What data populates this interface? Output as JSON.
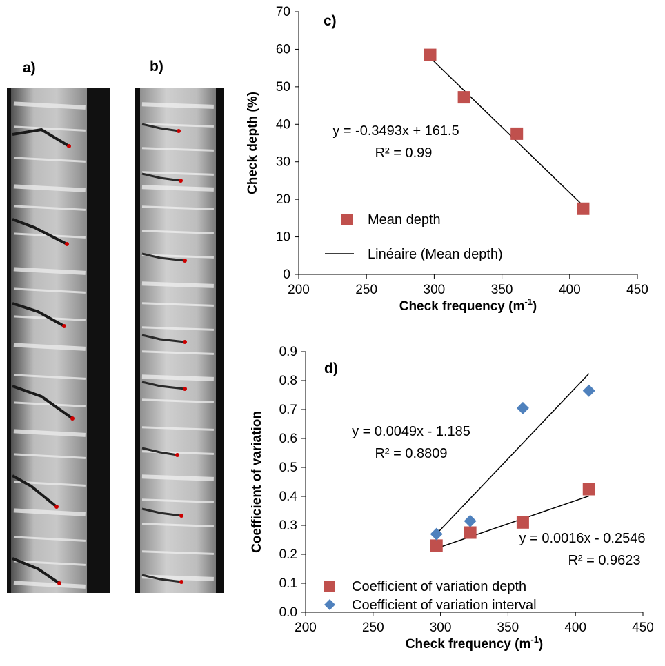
{
  "panels": {
    "a_label": "a)",
    "b_label": "b)"
  },
  "chart_data": [
    {
      "panel": "c)",
      "type": "scatter",
      "xlabel": "Check frequency (m",
      "xlabel_sup": "-1",
      "xlabel_end": ")",
      "ylabel": "Check depth (%)",
      "xlim": [
        200,
        450
      ],
      "ylim": [
        0,
        70
      ],
      "xticks": [
        200,
        250,
        300,
        350,
        400,
        450
      ],
      "yticks": [
        0,
        10,
        20,
        30,
        40,
        50,
        60,
        70
      ],
      "series": [
        {
          "name": "Mean depth",
          "marker": "square",
          "color": "#c0504d",
          "points": [
            [
              297,
              58.5
            ],
            [
              322,
              47.2
            ],
            [
              361,
              37.5
            ],
            [
              410,
              17.5
            ]
          ]
        }
      ],
      "trendlines": [
        {
          "name": "Linéaire (Mean depth)",
          "slope": -0.3493,
          "intercept": 161.5,
          "x_range": [
            297,
            410
          ],
          "equation": "y = -0.3493x + 161.5",
          "r2": "R² = 0.99"
        }
      ],
      "legend": [
        "Mean depth",
        "Linéaire (Mean depth)"
      ],
      "legend_position": "bottom-left"
    },
    {
      "panel": "d)",
      "type": "scatter",
      "xlabel": "Check frequency (m",
      "xlabel_sup": "-1",
      "xlabel_end": ")",
      "ylabel": "Coefficient of variation",
      "xlim": [
        200,
        450
      ],
      "ylim": [
        0,
        0.9
      ],
      "xticks": [
        200,
        250,
        300,
        350,
        400,
        450
      ],
      "yticks": [
        "0.0",
        "0.1",
        "0.2",
        "0.3",
        "0.4",
        "0.5",
        "0.6",
        "0.7",
        "0.8",
        "0.9"
      ],
      "series": [
        {
          "name": "Coefficient of variation depth",
          "marker": "square",
          "color": "#c0504d",
          "points": [
            [
              297,
              0.23
            ],
            [
              322,
              0.275
            ],
            [
              361,
              0.31
            ],
            [
              410,
              0.425
            ]
          ]
        },
        {
          "name": "Coefficient of variation interval",
          "marker": "diamond",
          "color": "#4f81bd",
          "points": [
            [
              297,
              0.27
            ],
            [
              322,
              0.315
            ],
            [
              361,
              0.705
            ],
            [
              410,
              0.765
            ]
          ]
        }
      ],
      "trendlines": [
        {
          "slope": 0.0049,
          "intercept": -1.185,
          "x_range": [
            297,
            410
          ],
          "equation": "y = 0.0049x - 1.185",
          "r2": "R² = 0.8809"
        },
        {
          "slope": 0.0016,
          "intercept": -0.2546,
          "x_range": [
            297,
            410
          ],
          "equation": "y = 0.0016x - 0.2546",
          "r2": "R² = 0.9623"
        }
      ],
      "legend": [
        "Coefficient of variation depth",
        "Coefficient of variation interval"
      ],
      "legend_position": "bottom-left"
    }
  ]
}
